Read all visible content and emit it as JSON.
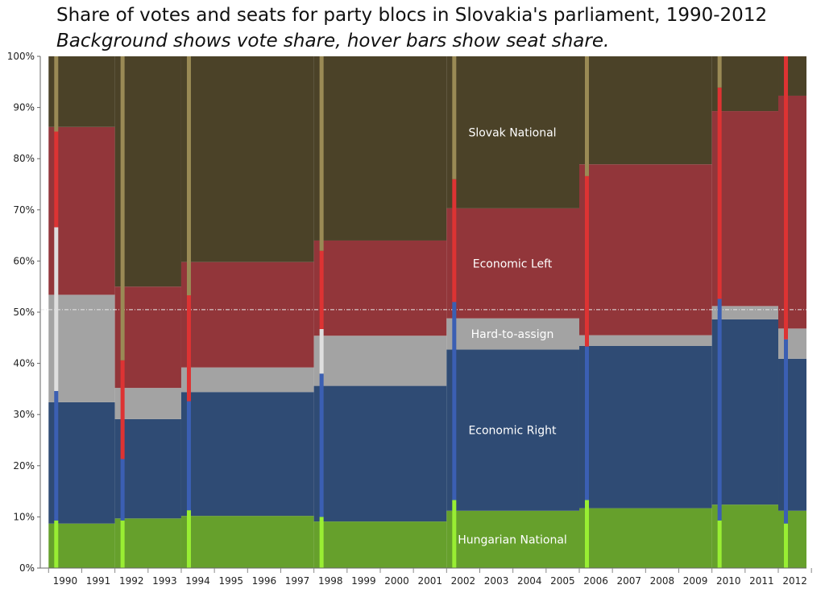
{
  "chart_data": {
    "type": "area",
    "title": "Share of votes and seats for party blocs in Slovakia's parliament, 1990-2012",
    "subtitle": "Background shows vote share, hover bars show seat share.",
    "xlabel": "",
    "ylabel": "",
    "x_ticks": [
      "1990",
      "1991",
      "1992",
      "1993",
      "1994",
      "1995",
      "1996",
      "1997",
      "1998",
      "1999",
      "2000",
      "2001",
      "2002",
      "2003",
      "2004",
      "2005",
      "2006",
      "2007",
      "2008",
      "2009",
      "2010",
      "2011",
      "2012"
    ],
    "y_ticks": [
      "0%",
      "10%",
      "20%",
      "30%",
      "40%",
      "50%",
      "60%",
      "70%",
      "80%",
      "90%",
      "100%"
    ],
    "ylim": [
      0,
      100
    ],
    "reference_line": 50.5,
    "elections": [
      1990,
      1992,
      1994,
      1998,
      2002,
      2006,
      2010,
      2012
    ],
    "vote_share": {
      "series": [
        {
          "name": "Hungarian National",
          "color": "#66a02c",
          "values": [
            8.7,
            9.7,
            10.2,
            9.1,
            11.2,
            11.7,
            12.4,
            11.2
          ]
        },
        {
          "name": "Economic Right",
          "color": "#2f4b74",
          "values": [
            23.7,
            19.4,
            24.2,
            26.5,
            31.5,
            31.7,
            36.2,
            29.7
          ]
        },
        {
          "name": "Hard-to-assign",
          "color": "#a3a3a3",
          "values": [
            21.0,
            6.1,
            4.8,
            9.8,
            6.1,
            2.1,
            2.6,
            5.9
          ]
        },
        {
          "name": "Economic Left",
          "color": "#92363a",
          "values": [
            32.8,
            19.8,
            20.6,
            18.6,
            21.5,
            33.4,
            38.1,
            45.5
          ]
        },
        {
          "name": "Slovak National",
          "color": "#4b4228",
          "values": [
            13.8,
            45.0,
            40.2,
            36.0,
            29.7,
            21.1,
            10.7,
            7.7
          ]
        }
      ]
    },
    "seat_share": {
      "series": [
        {
          "name": "Hungarian National",
          "color": "#99ee33",
          "values": [
            9.3,
            9.3,
            11.3,
            10.0,
            13.3,
            13.3,
            9.3,
            8.7
          ]
        },
        {
          "name": "Economic Right",
          "color": "#3b5fb3",
          "values": [
            25.3,
            12.0,
            21.3,
            28.0,
            38.7,
            30.0,
            43.3,
            36.0
          ]
        },
        {
          "name": "Hard-to-assign",
          "color": "#dedede",
          "values": [
            32.0,
            0.0,
            0.0,
            8.7,
            0.0,
            0.0,
            0.0,
            0.0
          ]
        },
        {
          "name": "Economic Left",
          "color": "#dd3333",
          "values": [
            18.7,
            19.3,
            20.7,
            15.3,
            24.0,
            33.3,
            41.3,
            55.3
          ]
        },
        {
          "name": "Slovak National",
          "color": "#9a8a55",
          "values": [
            14.7,
            59.4,
            46.7,
            38.0,
            24.0,
            23.4,
            6.1,
            0.0
          ]
        }
      ]
    }
  }
}
